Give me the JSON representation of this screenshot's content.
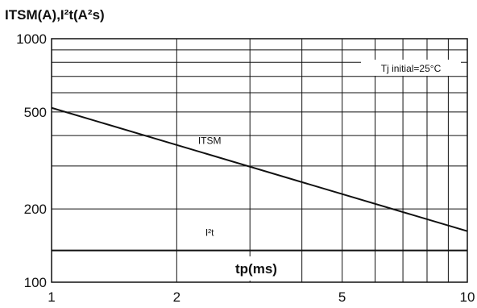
{
  "chart_data": {
    "type": "line",
    "title": "ITSM(A),I²t(A²s)",
    "xlabel": "tp(ms)",
    "ylabel": "",
    "xscale": "log",
    "yscale": "log",
    "xlim": [
      1,
      10
    ],
    "ylim": [
      100,
      1000
    ],
    "xticks": [
      {
        "value": 1,
        "label": "1"
      },
      {
        "value": 2,
        "label": "2"
      },
      {
        "value": 5,
        "label": "5"
      },
      {
        "value": 10,
        "label": "10"
      }
    ],
    "yticks": [
      {
        "value": 100,
        "label": "100"
      },
      {
        "value": 200,
        "label": "200"
      },
      {
        "value": 500,
        "label": "500"
      },
      {
        "value": 1000,
        "label": "1000"
      }
    ],
    "grid": true,
    "annotation": "Tj initial=25°C",
    "series": [
      {
        "name": "ITSM",
        "x": [
          1,
          10
        ],
        "y": [
          520,
          162
        ],
        "label_at": [
          3,
          370
        ]
      },
      {
        "name": "I²t",
        "x": [
          1,
          10
        ],
        "y": [
          135,
          135
        ],
        "label_at": [
          3,
          155
        ]
      }
    ]
  }
}
